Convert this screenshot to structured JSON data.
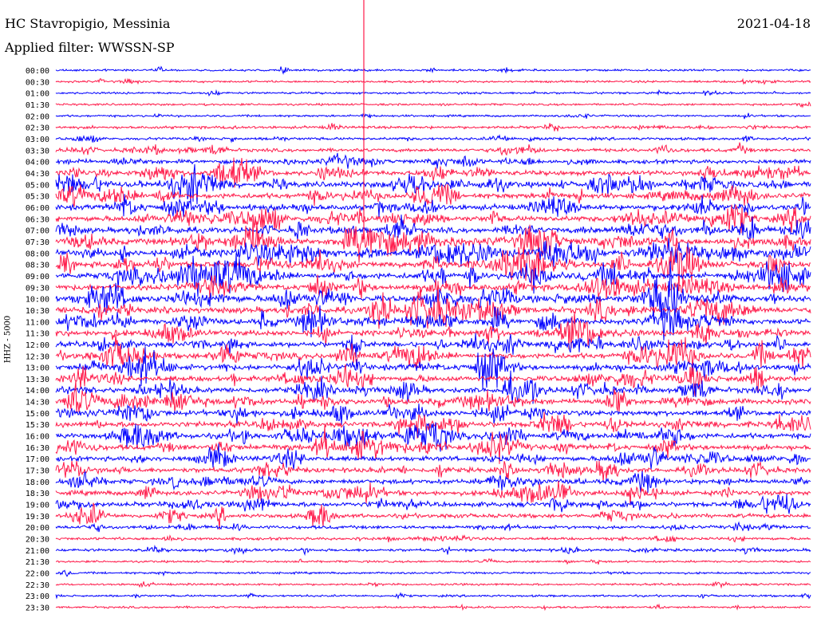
{
  "header": {
    "station": "HC Stavropigio, Messinia",
    "date": "2021-04-18",
    "filter": "Applied filter: WWSSN-SP"
  },
  "chart_data": {
    "type": "line",
    "title": "HC Stavropigio, Messinia",
    "ylabel": "HHZ - 5000",
    "colors": [
      "#0000ff",
      "#ff1a4a"
    ],
    "row_labels": [
      "00:00",
      "00:30",
      "01:00",
      "01:30",
      "02:00",
      "02:30",
      "03:00",
      "03:30",
      "04:00",
      "04:30",
      "05:00",
      "05:30",
      "06:00",
      "06:30",
      "07:00",
      "07:30",
      "08:00",
      "08:30",
      "09:00",
      "09:30",
      "10:00",
      "10:30",
      "11:00",
      "11:30",
      "12:00",
      "12:30",
      "13:00",
      "13:30",
      "14:00",
      "14:30",
      "15:00",
      "15:30",
      "16:00",
      "16:30",
      "17:00",
      "17:30",
      "18:00",
      "18:30",
      "19:00",
      "19:30",
      "20:00",
      "20:30",
      "21:00",
      "21:30",
      "22:00",
      "22:30",
      "23:00",
      "23:30"
    ],
    "row_intensity": [
      1,
      1,
      1,
      1,
      1,
      2,
      2,
      3,
      4,
      5,
      6,
      6,
      6,
      6,
      6,
      7,
      7,
      7,
      7,
      7,
      7,
      7,
      6,
      6,
      6,
      6,
      6,
      6,
      6,
      6,
      6,
      6,
      6,
      6,
      5,
      5,
      5,
      5,
      5,
      4,
      3,
      2,
      2,
      1,
      1,
      1,
      1,
      1
    ]
  }
}
